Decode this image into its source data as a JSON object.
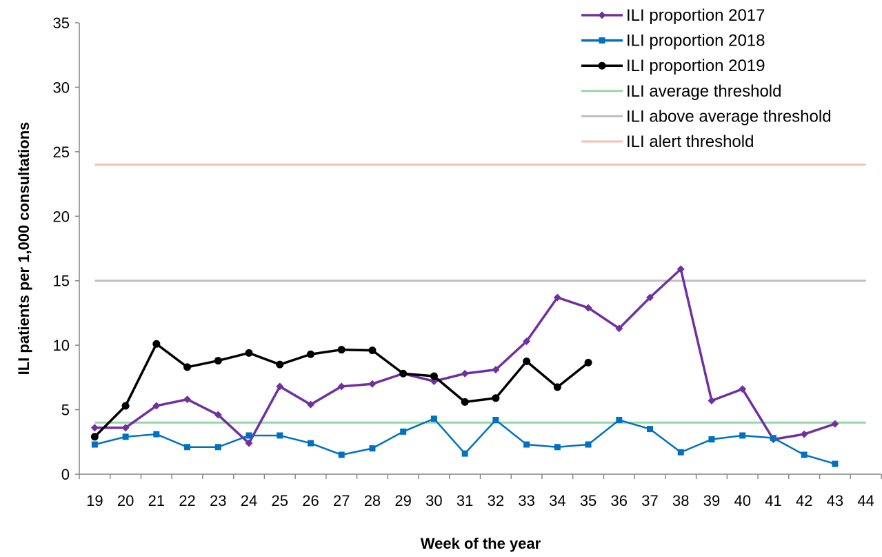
{
  "chart_data": {
    "type": "line",
    "xlabel": "Week of the year",
    "ylabel": "ILI patients per 1,000 consultations",
    "ylim": [
      0,
      35
    ],
    "yticks": [
      0,
      5,
      10,
      15,
      20,
      25,
      30,
      35
    ],
    "categories": [
      "19",
      "20",
      "21",
      "22",
      "23",
      "24",
      "25",
      "26",
      "27",
      "28",
      "29",
      "30",
      "31",
      "32",
      "33",
      "34",
      "35",
      "36",
      "37",
      "38",
      "39",
      "40",
      "41",
      "42",
      "43",
      "44"
    ],
    "grid": false,
    "legend_position": "top-right",
    "series": [
      {
        "name": "ILI proportion 2017",
        "color": "#7030A0",
        "marker": "diamond",
        "values": [
          3.6,
          3.6,
          5.3,
          5.8,
          4.6,
          2.4,
          6.8,
          5.4,
          6.8,
          7.0,
          7.8,
          7.2,
          7.8,
          8.1,
          10.3,
          13.7,
          12.9,
          11.3,
          13.7,
          15.9,
          5.7,
          6.6,
          2.7,
          3.1,
          3.9,
          null
        ]
      },
      {
        "name": "ILI proportion 2018",
        "color": "#0070C0",
        "marker": "square",
        "values": [
          2.3,
          2.9,
          3.1,
          2.1,
          2.1,
          3.0,
          3.0,
          2.4,
          1.5,
          2.0,
          3.3,
          4.3,
          1.6,
          4.2,
          2.3,
          2.1,
          2.3,
          4.2,
          3.5,
          1.7,
          2.7,
          3.0,
          2.8,
          1.5,
          0.8,
          null
        ]
      },
      {
        "name": "ILI proportion 2019",
        "color": "#000000",
        "marker": "circle",
        "values": [
          2.9,
          5.3,
          10.1,
          8.3,
          8.8,
          9.4,
          8.5,
          9.3,
          9.65,
          9.6,
          7.8,
          7.6,
          5.6,
          5.9,
          8.75,
          6.75,
          8.65,
          null,
          null,
          null,
          null,
          null,
          null,
          null,
          null,
          null
        ]
      },
      {
        "name": "ILI average threshold",
        "color": "#92D8A8",
        "marker": "none",
        "constant": 4.0
      },
      {
        "name": "ILI above average threshold",
        "color": "#BFBFBF",
        "marker": "none",
        "constant": 15.0
      },
      {
        "name": "ILI alert threshold",
        "color": "#F8BFB0",
        "marker": "none",
        "constant": 24.0
      }
    ]
  }
}
